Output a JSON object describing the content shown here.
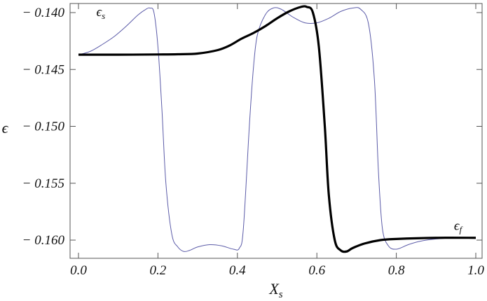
{
  "chart_data": {
    "type": "line",
    "xlabel": "X",
    "xlabel_sub": "s",
    "ylabel": "ϵ",
    "xlim": [
      0.0,
      1.0
    ],
    "ylim": [
      -0.1616,
      -0.1392
    ],
    "x_ticks": [
      {
        "value": 0.0,
        "label": "0.0"
      },
      {
        "value": 0.2,
        "label": "0.2"
      },
      {
        "value": 0.4,
        "label": "0.4"
      },
      {
        "value": 0.6,
        "label": "0.6"
      },
      {
        "value": 0.8,
        "label": "0.8"
      },
      {
        "value": 1.0,
        "label": "1.0"
      }
    ],
    "y_ticks": [
      {
        "value": -0.14,
        "label": "− 0.140"
      },
      {
        "value": -0.145,
        "label": "− 0.145"
      },
      {
        "value": -0.15,
        "label": "− 0.150"
      },
      {
        "value": -0.155,
        "label": "− 0.155"
      },
      {
        "value": -0.16,
        "label": "− 0.160"
      }
    ],
    "series": [
      {
        "name": "ϵs",
        "label_main": "ϵ",
        "label_sub": "s",
        "label_at": [
          0.045,
          -0.1403
        ],
        "color": "#5b5ba8",
        "style": "thin",
        "points": [
          [
            0.0,
            -0.1437
          ],
          [
            0.03,
            -0.1434
          ],
          [
            0.06,
            -0.1428
          ],
          [
            0.09,
            -0.1421
          ],
          [
            0.12,
            -0.1412
          ],
          [
            0.15,
            -0.1402
          ],
          [
            0.17,
            -0.1397
          ],
          [
            0.18,
            -0.1396
          ],
          [
            0.19,
            -0.14
          ],
          [
            0.2,
            -0.143
          ],
          [
            0.21,
            -0.1485
          ],
          [
            0.22,
            -0.155
          ],
          [
            0.235,
            -0.1595
          ],
          [
            0.25,
            -0.1606
          ],
          [
            0.265,
            -0.161
          ],
          [
            0.28,
            -0.1609
          ],
          [
            0.3,
            -0.1606
          ],
          [
            0.33,
            -0.1604
          ],
          [
            0.36,
            -0.1605
          ],
          [
            0.39,
            -0.1608
          ],
          [
            0.405,
            -0.1607
          ],
          [
            0.415,
            -0.159
          ],
          [
            0.43,
            -0.15
          ],
          [
            0.44,
            -0.145
          ],
          [
            0.45,
            -0.142
          ],
          [
            0.47,
            -0.1402
          ],
          [
            0.49,
            -0.1396
          ],
          [
            0.51,
            -0.1397
          ],
          [
            0.54,
            -0.1404
          ],
          [
            0.57,
            -0.1409
          ],
          [
            0.6,
            -0.1409
          ],
          [
            0.63,
            -0.1405
          ],
          [
            0.66,
            -0.1399
          ],
          [
            0.69,
            -0.1396
          ],
          [
            0.71,
            -0.1397
          ],
          [
            0.73,
            -0.141
          ],
          [
            0.745,
            -0.146
          ],
          [
            0.755,
            -0.154
          ],
          [
            0.765,
            -0.159
          ],
          [
            0.78,
            -0.1605
          ],
          [
            0.8,
            -0.1608
          ],
          [
            0.83,
            -0.1604
          ],
          [
            0.86,
            -0.1601
          ],
          [
            0.9,
            -0.1599
          ],
          [
            0.95,
            -0.1598
          ],
          [
            1.0,
            -0.1598
          ]
        ]
      },
      {
        "name": "ϵf",
        "label_main": "ϵ",
        "label_sub": "f",
        "label_at": [
          0.945,
          -0.1591
        ],
        "color": "#000000",
        "style": "thick",
        "points": [
          [
            0.0,
            -0.1437
          ],
          [
            0.1,
            -0.1437
          ],
          [
            0.2,
            -0.14368
          ],
          [
            0.25,
            -0.14366
          ],
          [
            0.3,
            -0.1436
          ],
          [
            0.35,
            -0.1433
          ],
          [
            0.38,
            -0.1429
          ],
          [
            0.41,
            -0.1423
          ],
          [
            0.44,
            -0.1418
          ],
          [
            0.47,
            -0.1412
          ],
          [
            0.5,
            -0.1405
          ],
          [
            0.53,
            -0.1399
          ],
          [
            0.56,
            -0.1395
          ],
          [
            0.575,
            -0.1395
          ],
          [
            0.59,
            -0.14
          ],
          [
            0.605,
            -0.143
          ],
          [
            0.62,
            -0.15
          ],
          [
            0.63,
            -0.156
          ],
          [
            0.645,
            -0.16
          ],
          [
            0.66,
            -0.1609
          ],
          [
            0.675,
            -0.161
          ],
          [
            0.69,
            -0.1607
          ],
          [
            0.72,
            -0.1603
          ],
          [
            0.76,
            -0.16
          ],
          [
            0.8,
            -0.1599
          ],
          [
            0.9,
            -0.1598
          ],
          [
            1.0,
            -0.1598
          ]
        ]
      }
    ],
    "grid": false,
    "frame": true
  }
}
